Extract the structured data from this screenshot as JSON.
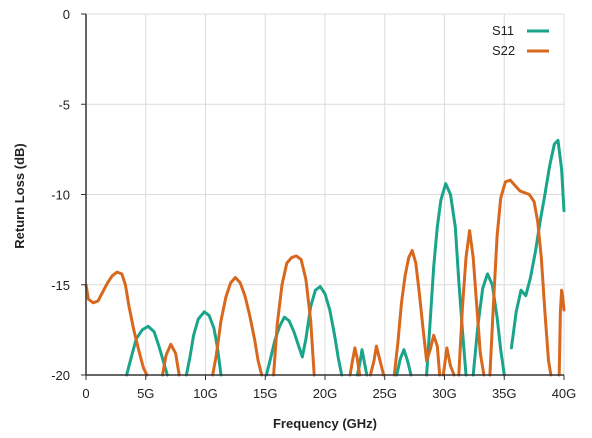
{
  "chart_data": {
    "type": "line",
    "title": "",
    "xlabel": "Frequency (GHz)",
    "ylabel": "Return Loss (dB)",
    "xlim": [
      0,
      40
    ],
    "ylim": [
      -20,
      0
    ],
    "x_ticks": [
      0,
      5,
      10,
      15,
      20,
      25,
      30,
      35,
      40
    ],
    "x_tick_labels": [
      "0",
      "5G",
      "10G",
      "15G",
      "20G",
      "25G",
      "30G",
      "35G",
      "40G"
    ],
    "y_ticks": [
      0,
      -5,
      -10,
      -15,
      -20
    ],
    "y_tick_labels": [
      "0",
      "-5",
      "-10",
      "-15",
      "-20"
    ],
    "grid": true,
    "legend": "top-right",
    "colors": {
      "S11": "#1aa58a",
      "S22": "#d8681e",
      "grid": "#dcdcdc",
      "axis": "#333333"
    },
    "series": [
      {
        "name": "S11",
        "segments": [
          [
            [
              3.4,
              -20
            ],
            [
              3.8,
              -19
            ],
            [
              4.2,
              -18
            ],
            [
              4.7,
              -17.5
            ],
            [
              5.2,
              -17.3
            ],
            [
              5.7,
              -17.6
            ],
            [
              6.1,
              -18.4
            ],
            [
              6.5,
              -19.3
            ],
            [
              6.8,
              -20
            ]
          ],
          [
            [
              8.4,
              -20
            ],
            [
              8.7,
              -19
            ],
            [
              9.0,
              -17.8
            ],
            [
              9.4,
              -16.9
            ],
            [
              9.9,
              -16.5
            ],
            [
              10.3,
              -16.7
            ],
            [
              10.7,
              -17.4
            ],
            [
              11.0,
              -18.5
            ],
            [
              11.3,
              -20
            ]
          ],
          [
            [
              15.1,
              -20
            ],
            [
              15.4,
              -19.2
            ],
            [
              15.8,
              -18.1
            ],
            [
              16.2,
              -17.3
            ],
            [
              16.6,
              -16.8
            ],
            [
              17.0,
              -17.0
            ],
            [
              17.4,
              -17.6
            ],
            [
              17.8,
              -18.4
            ],
            [
              18.1,
              -19.0
            ],
            [
              18.4,
              -18.0
            ],
            [
              18.8,
              -16.2
            ],
            [
              19.2,
              -15.3
            ],
            [
              19.6,
              -15.1
            ],
            [
              20.0,
              -15.5
            ],
            [
              20.4,
              -16.4
            ],
            [
              20.8,
              -17.8
            ],
            [
              21.1,
              -19.0
            ],
            [
              21.4,
              -20
            ]
          ],
          [
            [
              22.7,
              -20
            ],
            [
              22.9,
              -19.4
            ],
            [
              23.1,
              -18.6
            ],
            [
              23.3,
              -19.3
            ],
            [
              23.5,
              -20
            ]
          ],
          [
            [
              26.0,
              -20
            ],
            [
              26.3,
              -19.1
            ],
            [
              26.6,
              -18.6
            ],
            [
              26.9,
              -19.2
            ],
            [
              27.2,
              -20
            ]
          ],
          [
            [
              28.5,
              -20
            ],
            [
              28.8,
              -17.0
            ],
            [
              29.1,
              -14.0
            ],
            [
              29.4,
              -11.8
            ],
            [
              29.7,
              -10.3
            ],
            [
              30.1,
              -9.4
            ],
            [
              30.5,
              -10.0
            ],
            [
              30.9,
              -11.8
            ],
            [
              31.2,
              -14.8
            ],
            [
              31.5,
              -17.5
            ],
            [
              31.8,
              -20
            ]
          ],
          [
            [
              32.4,
              -20
            ],
            [
              32.8,
              -17.2
            ],
            [
              33.2,
              -15.2
            ],
            [
              33.6,
              -14.4
            ],
            [
              34.0,
              -15.0
            ],
            [
              34.4,
              -16.8
            ],
            [
              34.7,
              -18.6
            ],
            [
              35.0,
              -20
            ]
          ],
          [
            [
              35.6,
              -18.5
            ],
            [
              36.0,
              -16.5
            ],
            [
              36.4,
              -15.3
            ],
            [
              36.8,
              -15.6
            ],
            [
              37.2,
              -14.6
            ],
            [
              37.6,
              -13.2
            ],
            [
              38.0,
              -11.5
            ],
            [
              38.4,
              -10.0
            ],
            [
              38.8,
              -8.4
            ],
            [
              39.2,
              -7.2
            ],
            [
              39.5,
              -7.0
            ],
            [
              39.8,
              -8.6
            ],
            [
              40.0,
              -10.9
            ]
          ]
        ]
      },
      {
        "name": "S22",
        "segments": [
          [
            [
              0.0,
              -15.0
            ],
            [
              0.2,
              -15.8
            ],
            [
              0.6,
              -16.0
            ],
            [
              1.0,
              -15.9
            ],
            [
              1.4,
              -15.4
            ],
            [
              1.8,
              -14.9
            ],
            [
              2.2,
              -14.5
            ],
            [
              2.6,
              -14.3
            ],
            [
              3.0,
              -14.4
            ],
            [
              3.3,
              -15.0
            ],
            [
              3.6,
              -16.2
            ],
            [
              4.0,
              -17.5
            ],
            [
              4.4,
              -18.6
            ],
            [
              4.8,
              -19.6
            ],
            [
              5.1,
              -20
            ]
          ],
          [
            [
              6.4,
              -20
            ],
            [
              6.7,
              -18.9
            ],
            [
              7.1,
              -18.3
            ],
            [
              7.5,
              -18.8
            ],
            [
              7.8,
              -20
            ]
          ],
          [
            [
              10.6,
              -20
            ],
            [
              10.9,
              -18.9
            ],
            [
              11.3,
              -17.0
            ],
            [
              11.7,
              -15.7
            ],
            [
              12.1,
              -14.9
            ],
            [
              12.5,
              -14.6
            ],
            [
              12.9,
              -14.9
            ],
            [
              13.3,
              -15.6
            ],
            [
              13.7,
              -16.7
            ],
            [
              14.1,
              -18.0
            ],
            [
              14.4,
              -19.2
            ],
            [
              14.7,
              -20
            ]
          ],
          [
            [
              15.7,
              -20
            ],
            [
              16.0,
              -17.2
            ],
            [
              16.4,
              -15.0
            ],
            [
              16.8,
              -13.8
            ],
            [
              17.2,
              -13.5
            ],
            [
              17.6,
              -13.4
            ],
            [
              18.0,
              -13.6
            ],
            [
              18.4,
              -14.7
            ],
            [
              18.8,
              -17.0
            ],
            [
              19.1,
              -20
            ]
          ],
          [
            [
              22.1,
              -20
            ],
            [
              22.3,
              -19.2
            ],
            [
              22.5,
              -18.5
            ],
            [
              22.7,
              -19.1
            ],
            [
              22.9,
              -20
            ]
          ],
          [
            [
              23.8,
              -20
            ],
            [
              24.1,
              -19.2
            ],
            [
              24.3,
              -18.4
            ],
            [
              24.6,
              -19.2
            ],
            [
              24.9,
              -20
            ]
          ],
          [
            [
              25.8,
              -20
            ],
            [
              26.1,
              -18.2
            ],
            [
              26.4,
              -16.0
            ],
            [
              26.7,
              -14.5
            ],
            [
              27.0,
              -13.5
            ],
            [
              27.3,
              -13.1
            ],
            [
              27.6,
              -13.8
            ],
            [
              27.9,
              -15.5
            ],
            [
              28.2,
              -17.4
            ],
            [
              28.5,
              -19.2
            ],
            [
              28.8,
              -18.6
            ],
            [
              29.1,
              -17.8
            ],
            [
              29.4,
              -18.4
            ],
            [
              29.6,
              -20
            ]
          ],
          [
            [
              29.9,
              -20
            ],
            [
              30.2,
              -18.5
            ],
            [
              30.5,
              -19.5
            ],
            [
              30.8,
              -20
            ]
          ],
          [
            [
              31.2,
              -20
            ],
            [
              31.5,
              -16.3
            ],
            [
              31.8,
              -13.5
            ],
            [
              32.1,
              -12.0
            ],
            [
              32.4,
              -13.5
            ],
            [
              32.7,
              -16.2
            ],
            [
              33.0,
              -18.8
            ],
            [
              33.3,
              -20
            ]
          ],
          [
            [
              33.8,
              -20
            ],
            [
              34.1,
              -16.0
            ],
            [
              34.4,
              -12.3
            ],
            [
              34.7,
              -10.2
            ],
            [
              35.1,
              -9.3
            ],
            [
              35.5,
              -9.2
            ],
            [
              35.9,
              -9.5
            ],
            [
              36.3,
              -9.8
            ],
            [
              36.7,
              -9.9
            ],
            [
              37.1,
              -10.0
            ],
            [
              37.5,
              -10.4
            ],
            [
              37.8,
              -11.5
            ],
            [
              38.1,
              -13.5
            ],
            [
              38.4,
              -16.5
            ],
            [
              38.7,
              -19.2
            ],
            [
              38.9,
              -20
            ]
          ],
          [
            [
              39.6,
              -20
            ],
            [
              39.7,
              -16.5
            ],
            [
              39.8,
              -15.3
            ],
            [
              39.9,
              -15.7
            ],
            [
              40.0,
              -16.4
            ]
          ]
        ]
      }
    ]
  }
}
